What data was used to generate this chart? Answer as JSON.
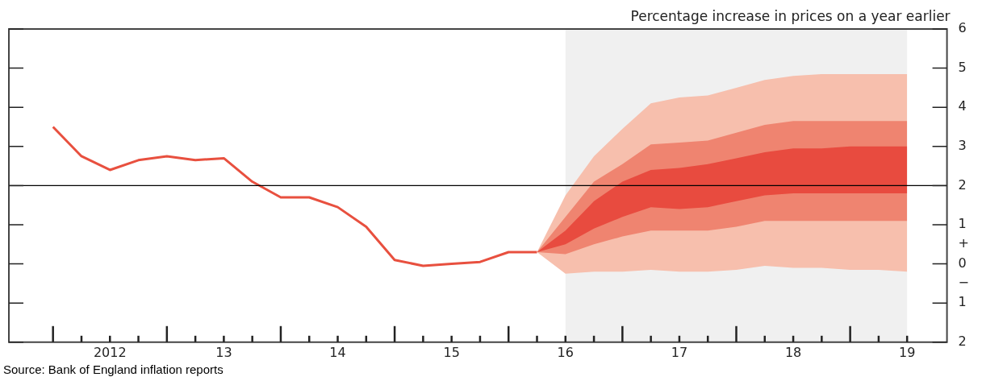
{
  "chart_data": {
    "type": "line",
    "ylabel": "Percentage increase in prices on a year earlier",
    "annotations": [
      "Source: Bank of England inflation reports"
    ],
    "categories": [
      null,
      null,
      "2012",
      null,
      null,
      null,
      "13",
      null,
      null,
      null,
      "14",
      null,
      null,
      null,
      "15",
      null,
      null,
      null,
      "16",
      null,
      null,
      null,
      "17",
      null,
      null,
      null,
      "18",
      null,
      null,
      null,
      "19"
    ],
    "ylim": [
      -2,
      6
    ],
    "yticks": [
      {
        "value": -2,
        "label": "2"
      },
      {
        "value": -1,
        "label": "1"
      },
      {
        "value": -0.5,
        "label": "−"
      },
      0,
      {
        "value": 0.5,
        "label": "+"
      },
      1,
      2,
      3,
      4,
      5,
      6
    ],
    "grid": false,
    "legend": false,
    "marker": "none",
    "line_style": "solid",
    "ref_lines": [
      {
        "axis": "y",
        "value": 2,
        "color": "#000000"
      }
    ],
    "bands": [
      {
        "axis": "x",
        "from": "16",
        "to": "19",
        "color": "#f0f0f0"
      }
    ],
    "series": [
      {
        "color": "#e8503f",
        "values": [
          3.5,
          2.75,
          2.4,
          2.65,
          2.75,
          2.65,
          2.7,
          2.1,
          1.7,
          1.7,
          1.45,
          0.95,
          0.1,
          -0.05,
          0,
          0.05,
          0.3,
          0.3,
          null,
          null,
          null,
          null,
          null,
          null,
          null,
          null,
          null,
          null,
          null,
          null,
          null
        ]
      },
      {
        "type": "area",
        "color": "#f7bfad",
        "values": [
          null,
          null,
          null,
          null,
          null,
          null,
          null,
          null,
          null,
          null,
          null,
          null,
          null,
          null,
          null,
          null,
          null,
          null,
          null,
          null,
          null,
          null,
          null,
          null,
          null,
          null,
          null,
          null,
          null,
          null,
          null
        ],
        "lower": [
          null,
          null,
          null,
          null,
          null,
          null,
          null,
          null,
          null,
          null,
          null,
          null,
          null,
          null,
          null,
          null,
          null,
          0.3,
          -0.25,
          -0.2,
          -0.2,
          -0.15,
          -0.2,
          -0.2,
          -0.15,
          -0.05,
          -0.1,
          -0.1,
          -0.15,
          -0.15,
          -0.2
        ],
        "upper": [
          null,
          null,
          null,
          null,
          null,
          null,
          null,
          null,
          null,
          null,
          null,
          null,
          null,
          null,
          null,
          null,
          null,
          0.3,
          1.75,
          2.75,
          3.45,
          4.1,
          4.25,
          4.3,
          4.5,
          4.7,
          4.8,
          4.85,
          4.85,
          4.85,
          4.85
        ]
      },
      {
        "type": "area",
        "color": "#ef8470",
        "values": [
          null,
          null,
          null,
          null,
          null,
          null,
          null,
          null,
          null,
          null,
          null,
          null,
          null,
          null,
          null,
          null,
          null,
          null,
          null,
          null,
          null,
          null,
          null,
          null,
          null,
          null,
          null,
          null,
          null,
          null,
          null
        ],
        "lower": [
          null,
          null,
          null,
          null,
          null,
          null,
          null,
          null,
          null,
          null,
          null,
          null,
          null,
          null,
          null,
          null,
          null,
          0.3,
          0.25,
          0.5,
          0.7,
          0.85,
          0.85,
          0.85,
          0.95,
          1.1,
          1.1,
          1.1,
          1.1,
          1.1,
          1.1
        ],
        "upper": [
          null,
          null,
          null,
          null,
          null,
          null,
          null,
          null,
          null,
          null,
          null,
          null,
          null,
          null,
          null,
          null,
          null,
          0.3,
          1.2,
          2.1,
          2.55,
          3.05,
          3.1,
          3.15,
          3.35,
          3.55,
          3.65,
          3.65,
          3.65,
          3.65,
          3.65
        ]
      },
      {
        "type": "area",
        "color": "#e84b3f",
        "values": [
          null,
          null,
          null,
          null,
          null,
          null,
          null,
          null,
          null,
          null,
          null,
          null,
          null,
          null,
          null,
          null,
          null,
          null,
          null,
          null,
          null,
          null,
          null,
          null,
          null,
          null,
          null,
          null,
          null,
          null,
          null
        ],
        "lower": [
          null,
          null,
          null,
          null,
          null,
          null,
          null,
          null,
          null,
          null,
          null,
          null,
          null,
          null,
          null,
          null,
          null,
          0.3,
          0.5,
          0.9,
          1.2,
          1.45,
          1.4,
          1.45,
          1.6,
          1.75,
          1.8,
          1.8,
          1.8,
          1.8,
          1.8
        ],
        "upper": [
          null,
          null,
          null,
          null,
          null,
          null,
          null,
          null,
          null,
          null,
          null,
          null,
          null,
          null,
          null,
          null,
          null,
          0.3,
          0.85,
          1.6,
          2.1,
          2.4,
          2.45,
          2.55,
          2.7,
          2.85,
          2.95,
          2.95,
          3,
          3,
          3
        ]
      }
    ]
  }
}
